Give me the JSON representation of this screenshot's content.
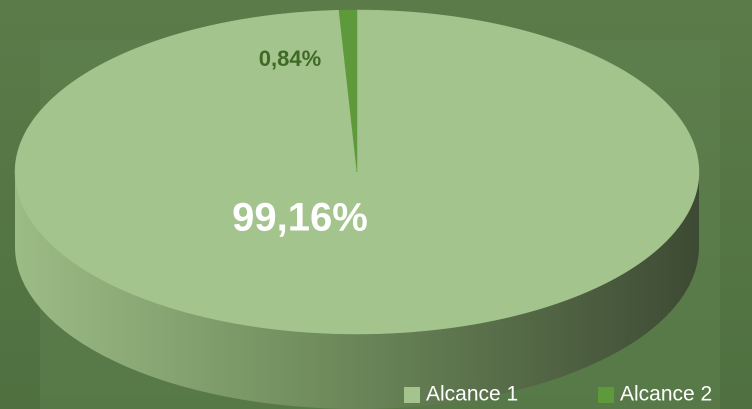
{
  "chart_data": {
    "type": "pie",
    "categories": [
      "Alcance 1",
      "Alcance 2"
    ],
    "values": [
      99.16,
      0.84
    ],
    "value_labels": [
      "99,16%",
      "0,84%"
    ],
    "colors": [
      "#a3c48c",
      "#5e9a3c"
    ],
    "legend": "bottom-right"
  }
}
